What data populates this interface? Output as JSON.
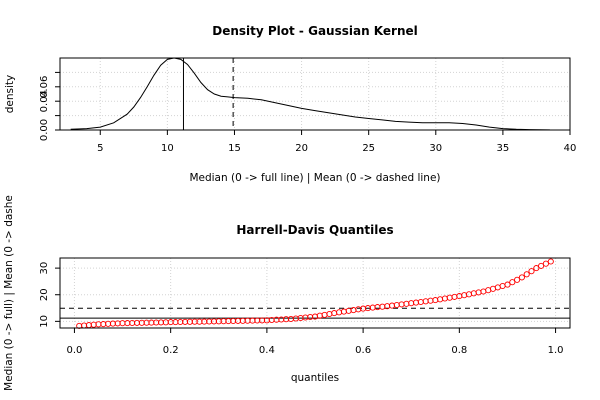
{
  "chart_data": [
    {
      "type": "line",
      "title": "Density Plot - Gaussian Kernel",
      "xlabel": "Median (0 -> full line) | Mean (0 -> dashed line)",
      "ylabel": "density",
      "xlim": [
        2,
        40
      ],
      "ylim": [
        0,
        0.1
      ],
      "xticks": [
        5,
        10,
        15,
        20,
        25,
        30,
        35,
        40
      ],
      "yticks": [
        0.0,
        0.02,
        0.04,
        0.06,
        0.08
      ],
      "ytick_labels": [
        "0.00",
        "",
        "0.04",
        "0.06",
        ""
      ],
      "grid": true,
      "median": 11.2,
      "mean": 14.9,
      "series": [
        {
          "x": [
            2.8,
            4,
            5,
            6,
            7,
            7.5,
            8,
            8.5,
            9,
            9.5,
            10,
            10.5,
            11,
            11.5,
            12,
            12.5,
            13,
            13.5,
            14,
            14.5,
            15,
            16,
            17,
            18,
            19,
            20,
            21,
            22,
            23,
            24,
            25,
            26,
            27,
            28,
            29,
            30,
            31,
            32,
            33,
            34,
            35,
            36,
            37,
            38.5
          ],
          "y": [
            0.001,
            0.002,
            0.004,
            0.01,
            0.022,
            0.032,
            0.045,
            0.06,
            0.076,
            0.09,
            0.098,
            0.1,
            0.098,
            0.091,
            0.079,
            0.066,
            0.056,
            0.05,
            0.047,
            0.046,
            0.045,
            0.044,
            0.042,
            0.038,
            0.034,
            0.03,
            0.027,
            0.024,
            0.021,
            0.018,
            0.016,
            0.014,
            0.012,
            0.011,
            0.01,
            0.01,
            0.01,
            0.009,
            0.007,
            0.004,
            0.002,
            0.001,
            0.0005,
            0.0002
          ]
        }
      ]
    },
    {
      "type": "scatter",
      "title": "Harrell-Davis Quantiles",
      "xlabel": "quantiles",
      "ylabel": "Median (0 -> full) | Mean (0 -> dashe",
      "xlim": [
        -0.03,
        1.03
      ],
      "ylim": [
        7.5,
        33.8
      ],
      "xticks": [
        0.0,
        0.2,
        0.4,
        0.6,
        0.8,
        1.0
      ],
      "xtick_labels": [
        "0.0",
        "0.2",
        "0.4",
        "0.6",
        "0.8",
        "1.0"
      ],
      "yticks": [
        10,
        20,
        30
      ],
      "grid": true,
      "median": 11.2,
      "mean": 14.9,
      "quantile_knots": {
        "q": [
          0.01,
          0.05,
          0.1,
          0.2,
          0.3,
          0.4,
          0.45,
          0.5,
          0.55,
          0.6,
          0.65,
          0.7,
          0.75,
          0.8,
          0.85,
          0.9,
          0.93,
          0.96,
          0.99
        ],
        "v": [
          8.3,
          8.9,
          9.3,
          9.7,
          10.0,
          10.4,
          10.9,
          11.8,
          13.4,
          14.8,
          15.7,
          16.8,
          18.0,
          19.5,
          21.2,
          23.8,
          26.5,
          30.0,
          32.5
        ]
      }
    }
  ]
}
